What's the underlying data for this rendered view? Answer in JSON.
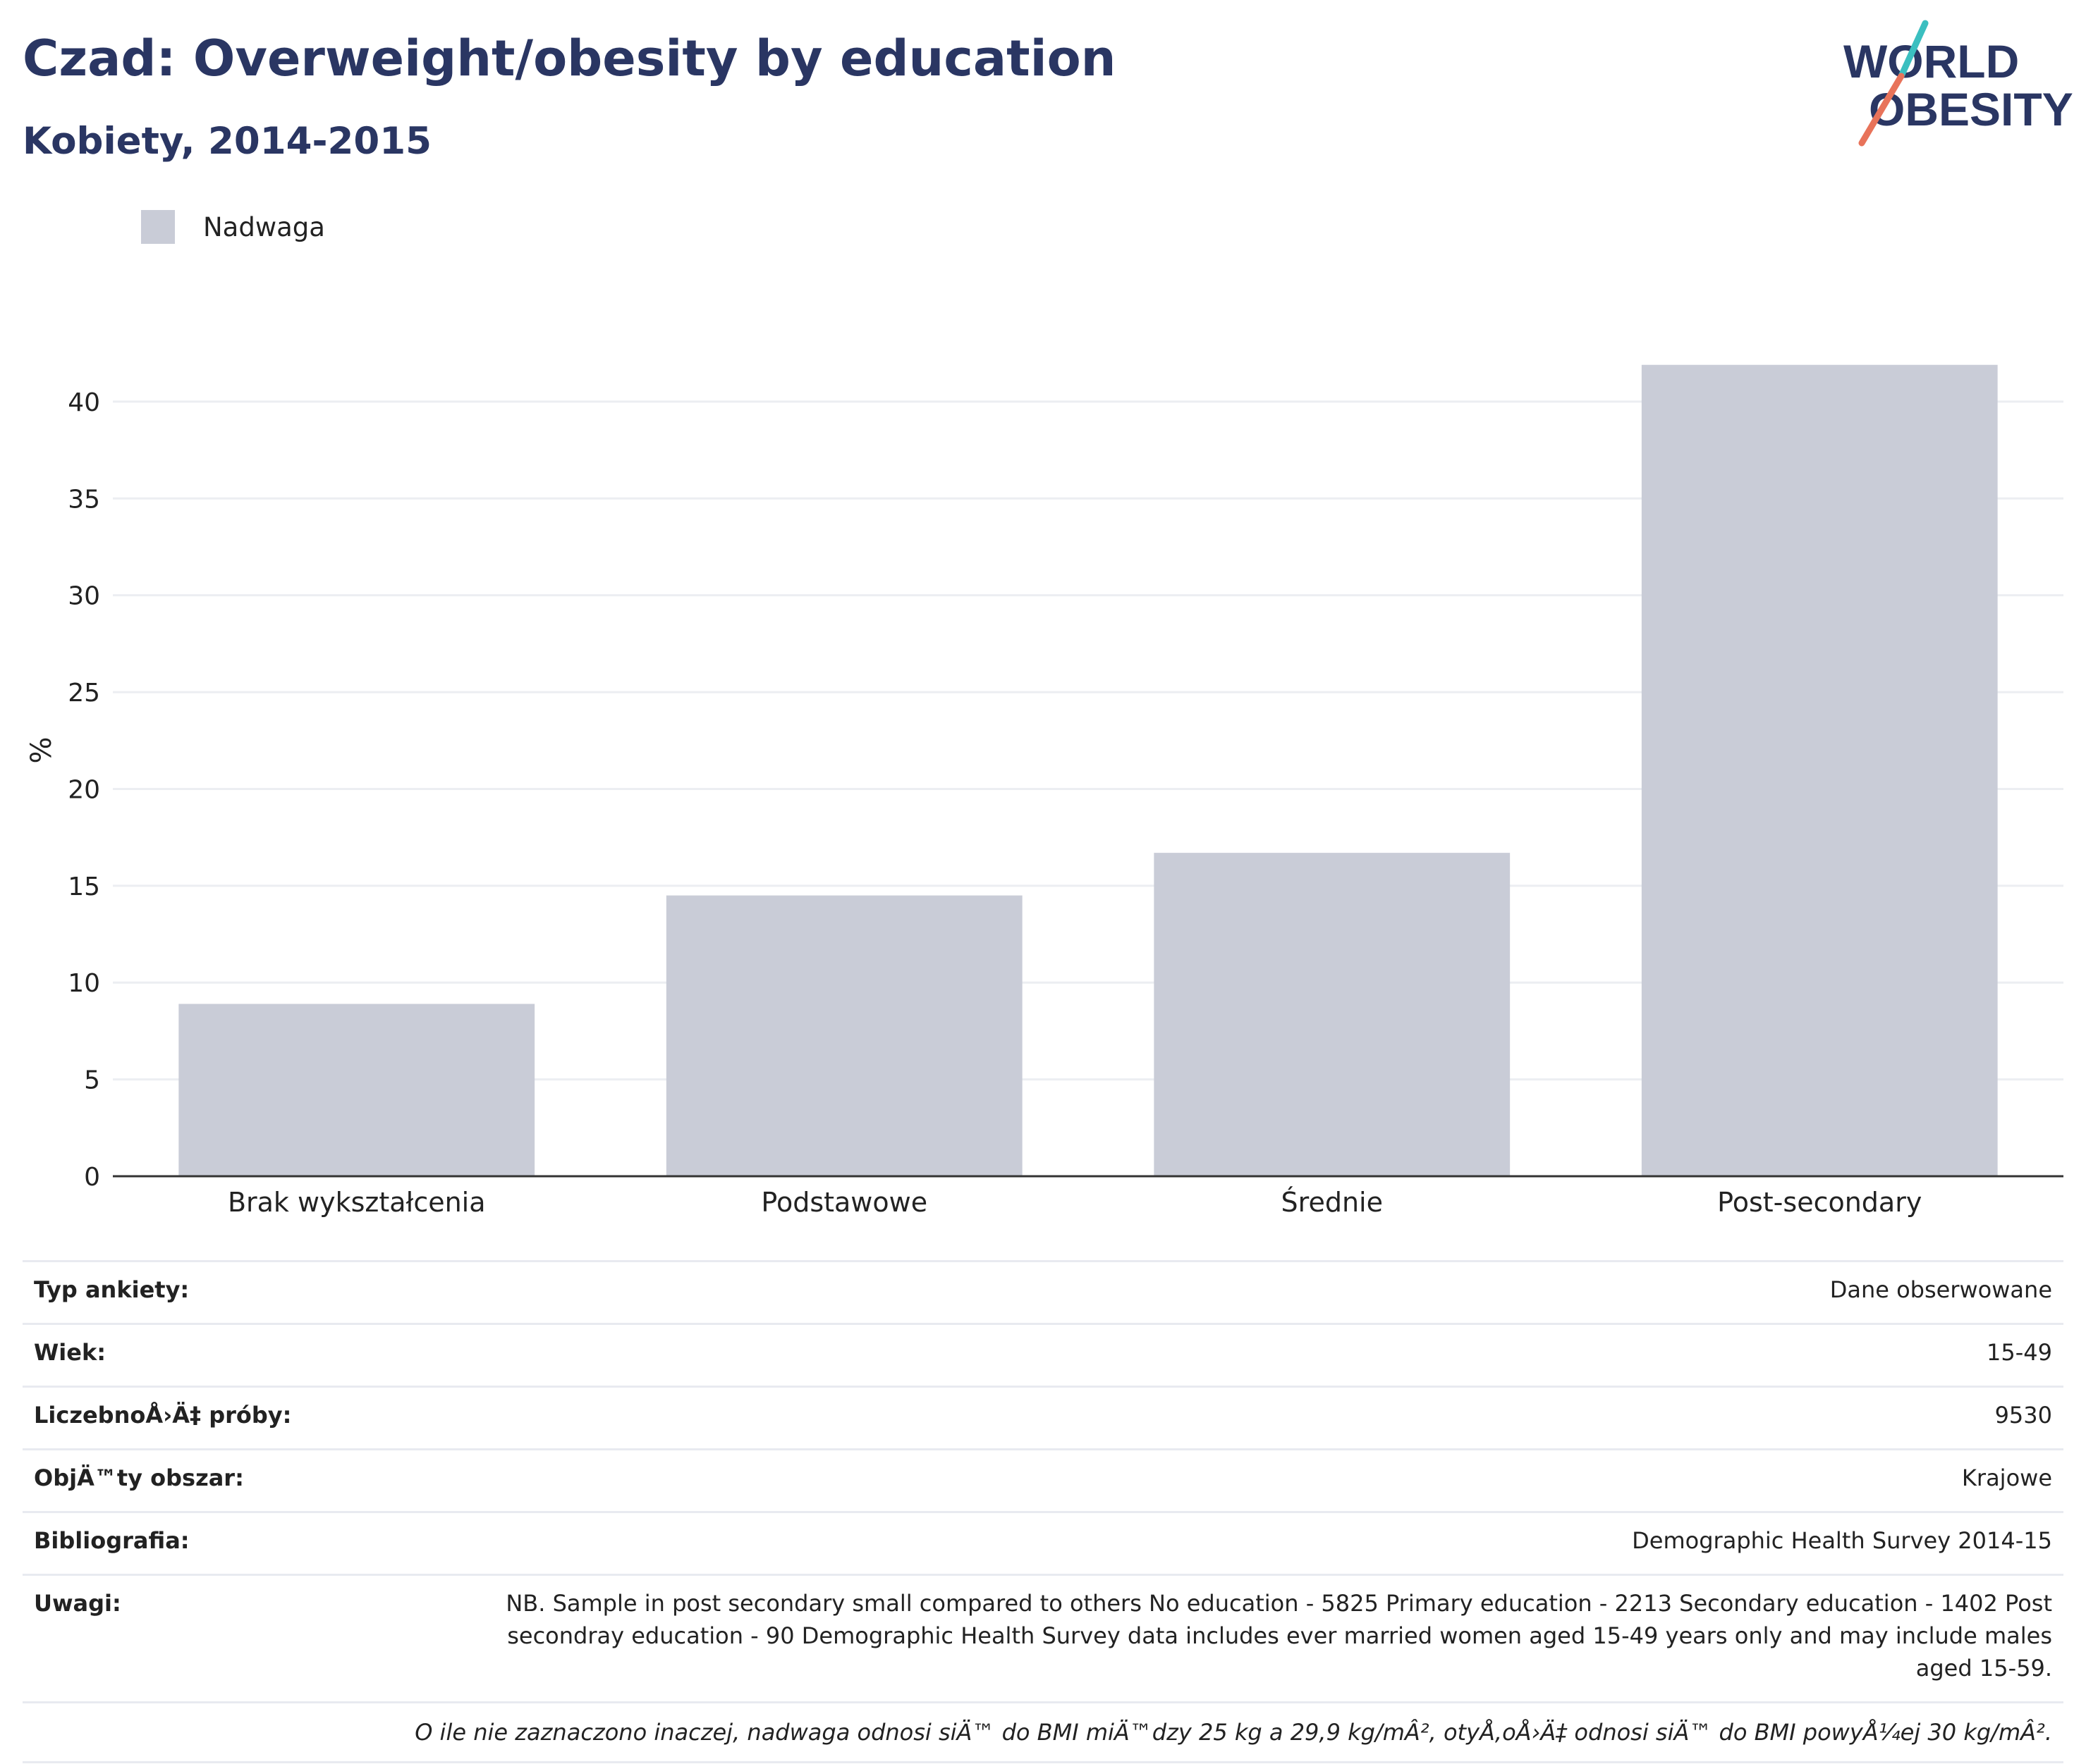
{
  "header": {
    "title": "Czad: Overweight/obesity by education",
    "subtitle": "Kobiety, 2014-2015"
  },
  "logo": {
    "line1": "WORLD",
    "line2": "OBESITY",
    "text_color": "#2a3663",
    "accent_teal": "#3bbfc0",
    "accent_coral": "#e8735a"
  },
  "legend": {
    "label": "Nadwaga",
    "color": "#c9ccd7"
  },
  "chart_data": {
    "type": "bar",
    "categories": [
      "Brak wykształcenia",
      "Podstawowe",
      "Średnie",
      "Post-secondary"
    ],
    "series": [
      {
        "name": "Nadwaga",
        "values": [
          8.9,
          14.5,
          16.7,
          41.9
        ]
      }
    ],
    "ylabel": "%",
    "ylim": [
      0,
      44
    ],
    "yticks": [
      0,
      5,
      10,
      15,
      20,
      25,
      30,
      35,
      40
    ],
    "grid": true,
    "bar_color": "#c9ccd7"
  },
  "info": [
    {
      "key": "Typ ankiety:",
      "value": "Dane obserwowane"
    },
    {
      "key": "Wiek:",
      "value": "15-49"
    },
    {
      "key": "LiczebnoÅ›Ä‡ próby:",
      "value": "9530"
    },
    {
      "key": "ObjÄ™ty obszar:",
      "value": "Krajowe"
    },
    {
      "key": "Bibliografia:",
      "value": "Demographic Health Survey 2014-15"
    },
    {
      "key": "Uwagi:",
      "value": "NB. Sample in post secondary small compared to others No education - 5825 Primary education - 2213 Secondary education - 1402 Post secondray education - 90 Demographic Health Survey data includes ever married women aged 15-49 years only and may include males aged 15-59."
    }
  ],
  "footnote": "O ile nie zaznaczono inaczej, nadwaga odnosi siÄ™ do BMI miÄ™dzy 25 kg a 29,9 kg/mÂ², otyÅ‚oÅ›Ä‡ odnosi siÄ™ do BMI powyÅ¼ej 30 kg/mÂ²."
}
